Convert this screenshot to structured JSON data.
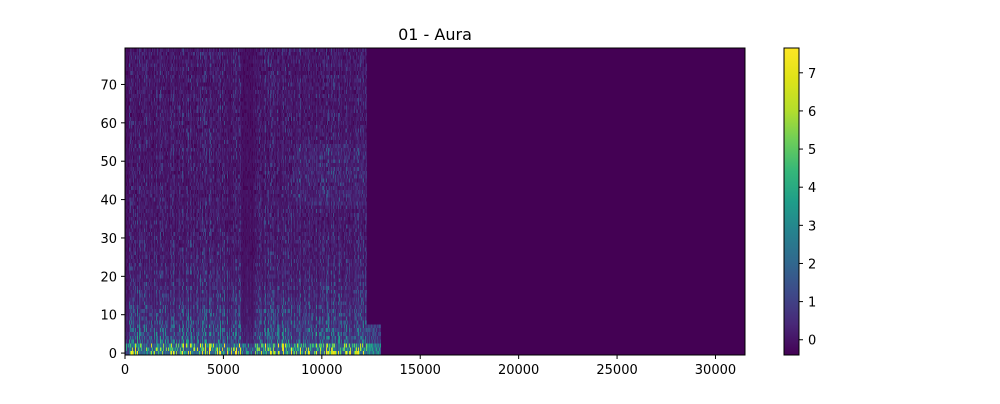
{
  "chart_data": {
    "type": "heatmap",
    "title": "01 - Aura",
    "xlabel": "",
    "ylabel": "",
    "xlim": [
      0,
      31500
    ],
    "ylim": [
      -0.5,
      79.5
    ],
    "x_ticks": [
      0,
      5000,
      10000,
      15000,
      20000,
      25000,
      30000
    ],
    "y_ticks": [
      0,
      10,
      20,
      30,
      40,
      50,
      60,
      70
    ],
    "grid": false,
    "colormap": "viridis",
    "colorbar": {
      "range": [
        -0.4,
        7.65
      ],
      "ticks": [
        0,
        1,
        2,
        3,
        4,
        5,
        6,
        7
      ]
    },
    "signal_end_x": 12300,
    "low_band_end_x": 13000,
    "quiet_gap_x": [
      5900,
      6600
    ],
    "background_value": -0.4
  },
  "colors": {
    "viridis_low": "#440154",
    "viridis_high": "#fde725"
  }
}
